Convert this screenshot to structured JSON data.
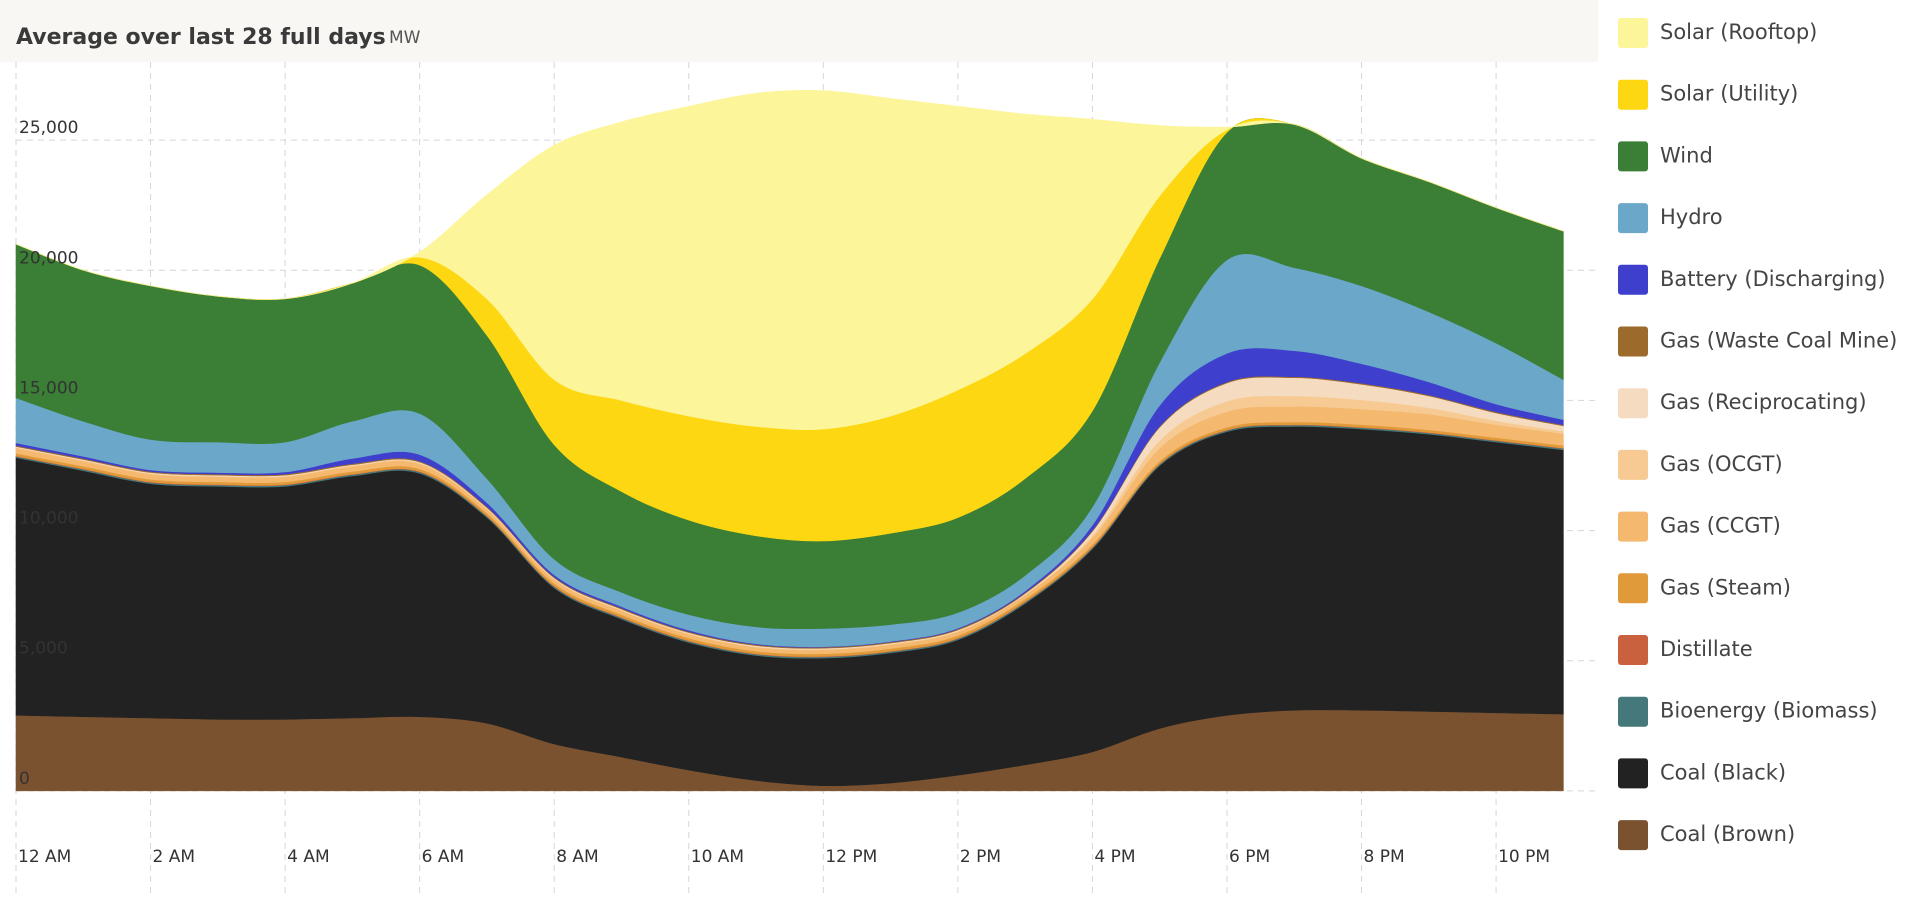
{
  "chart_data": {
    "type": "area",
    "stacked": true,
    "title": "Average over last 28 full days",
    "unit": "MW",
    "legend": "right",
    "grid": true,
    "categories": [
      "12 AM",
      null,
      "2 AM",
      null,
      "4 AM",
      null,
      "6 AM",
      null,
      "8 AM",
      null,
      "10 AM",
      null,
      "12 PM",
      null,
      "2 PM",
      null,
      "4 PM",
      null,
      "6 PM",
      null,
      "8 PM",
      null,
      "10 PM",
      null
    ],
    "ylim": [
      -4000,
      28000
    ],
    "yticks": [
      0,
      {
        "value": 5000,
        "label": "5,000"
      },
      {
        "value": 10000,
        "label": "10,000"
      },
      {
        "value": 15000,
        "label": "15,000"
      },
      {
        "value": 20000,
        "label": "20,000"
      },
      {
        "value": 25000,
        "label": "25,000"
      }
    ],
    "series": [
      {
        "name": "Coal (Brown)",
        "color": "#7b5230",
        "values": [
          2900,
          2850,
          2800,
          2750,
          2750,
          2800,
          2850,
          2600,
          1800,
          1300,
          800,
          400,
          200,
          300,
          600,
          1000,
          1500,
          2400,
          2900,
          3100,
          3100,
          3050,
          3000,
          2950
        ]
      },
      {
        "name": "Coal (Black)",
        "color": "#222222",
        "values": [
          9900,
          9450,
          9000,
          8950,
          8950,
          9300,
          9350,
          7900,
          6000,
          5300,
          4900,
          4800,
          4900,
          5000,
          5200,
          6200,
          7800,
          10100,
          10900,
          10900,
          10800,
          10650,
          10400,
          10150
        ]
      },
      {
        "name": "Bioenergy (Biomass)",
        "color": "#44787a",
        "values": [
          50,
          50,
          50,
          50,
          50,
          50,
          50,
          50,
          50,
          50,
          50,
          50,
          50,
          50,
          50,
          50,
          50,
          50,
          50,
          50,
          50,
          50,
          50,
          50
        ]
      },
      {
        "name": "Distillate",
        "color": "#c9613f",
        "values": [
          20,
          20,
          20,
          20,
          20,
          20,
          20,
          20,
          20,
          20,
          20,
          20,
          20,
          20,
          20,
          20,
          20,
          20,
          20,
          20,
          20,
          20,
          20,
          20
        ]
      },
      {
        "name": "Gas (Steam)",
        "color": "#e19a3a",
        "values": [
          100,
          100,
          100,
          100,
          100,
          100,
          100,
          100,
          100,
          100,
          100,
          100,
          100,
          100,
          100,
          100,
          100,
          100,
          100,
          100,
          100,
          100,
          100,
          100
        ]
      },
      {
        "name": "Gas (CCGT)",
        "color": "#f4b86f",
        "values": [
          200,
          200,
          200,
          200,
          200,
          200,
          200,
          150,
          150,
          150,
          150,
          150,
          150,
          150,
          150,
          150,
          250,
          500,
          600,
          600,
          600,
          600,
          500,
          450
        ]
      },
      {
        "name": "Gas (OCGT)",
        "color": "#f6ca92",
        "values": [
          30,
          30,
          30,
          30,
          30,
          30,
          30,
          30,
          30,
          30,
          30,
          30,
          30,
          30,
          30,
          30,
          100,
          300,
          400,
          400,
          350,
          250,
          150,
          100
        ]
      },
      {
        "name": "Gas (Reciprocating)",
        "color": "#f5dcc0",
        "values": [
          30,
          30,
          30,
          30,
          30,
          30,
          30,
          30,
          30,
          30,
          30,
          30,
          30,
          30,
          30,
          30,
          150,
          500,
          700,
          700,
          600,
          450,
          300,
          200
        ]
      },
      {
        "name": "Gas (Waste Coal Mine)",
        "color": "#9c6a2a",
        "values": [
          40,
          40,
          40,
          40,
          40,
          40,
          40,
          40,
          40,
          40,
          40,
          40,
          40,
          40,
          40,
          40,
          40,
          40,
          40,
          40,
          40,
          40,
          40,
          40
        ]
      },
      {
        "name": "Battery (Discharging)",
        "color": "#3f3fce",
        "values": [
          100,
          80,
          60,
          60,
          80,
          200,
          250,
          150,
          80,
          60,
          50,
          30,
          20,
          20,
          30,
          60,
          200,
          800,
          1100,
          1000,
          750,
          500,
          300,
          200
        ]
      },
      {
        "name": "Hydro",
        "color": "#6aa7c8",
        "values": [
          1730,
          1350,
          1170,
          1170,
          1150,
          1430,
          1580,
          930,
          600,
          550,
          600,
          650,
          700,
          650,
          600,
          600,
          700,
          1650,
          3590,
          3190,
          2990,
          2690,
          2340,
          1540
        ]
      },
      {
        "name": "Wind",
        "color": "#3a7f35",
        "values": [
          5900,
          5800,
          5900,
          5600,
          5500,
          5300,
          5700,
          5500,
          4400,
          3870,
          3630,
          3500,
          3360,
          3510,
          3650,
          3720,
          3690,
          4000,
          4900,
          5500,
          4900,
          5000,
          5200,
          5700
        ]
      },
      {
        "name": "Solar (Utility)",
        "color": "#fdd812",
        "values": [
          0,
          0,
          0,
          0,
          0,
          0,
          300,
          1400,
          2500,
          3500,
          4000,
          4200,
          4300,
          4500,
          4900,
          4800,
          4300,
          2400,
          100,
          0,
          0,
          0,
          0,
          0
        ]
      },
      {
        "name": "Solar (Rooftop)",
        "color": "#fdf59a",
        "values": [
          0,
          0,
          0,
          0,
          0,
          0,
          200,
          4000,
          9000,
          10700,
          11900,
          12800,
          13000,
          12200,
          10900,
          9200,
          6900,
          2700,
          100,
          0,
          0,
          0,
          0,
          0
        ]
      }
    ]
  }
}
